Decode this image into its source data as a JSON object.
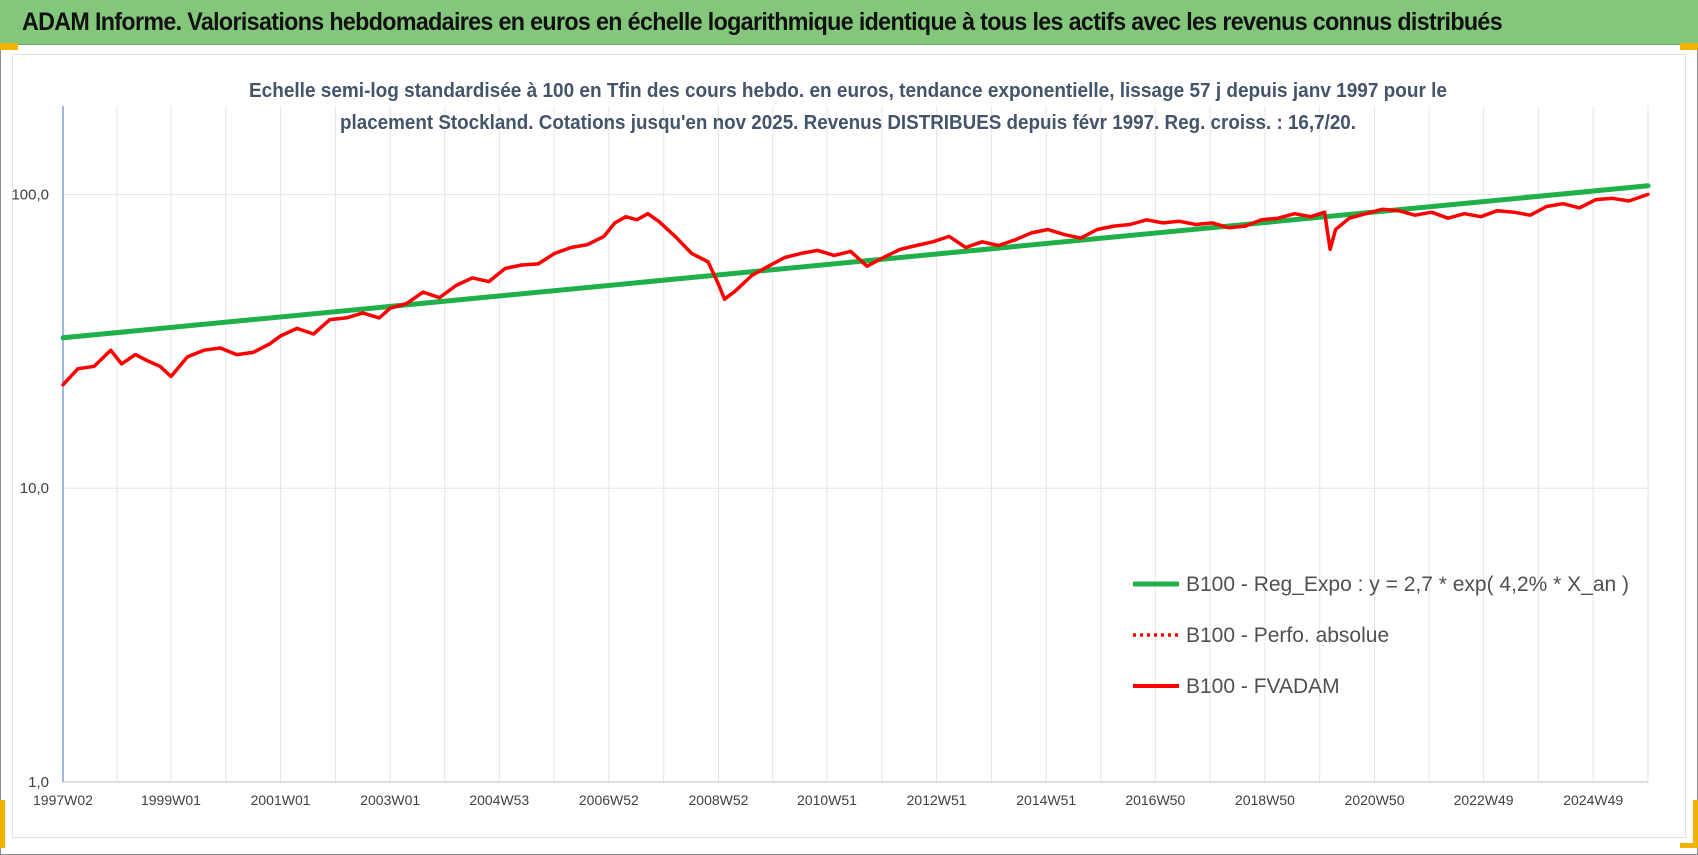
{
  "banner": {
    "title": "ADAM Informe. Valorisations hebdomadaires en euros en échelle logarithmique identique à tous les actifs avec les revenus connus distribués"
  },
  "colors": {
    "banner_bg": "#83c77b",
    "trend": "#1fb04a",
    "fvadam": "#ff0000",
    "perfo": "#ff0000",
    "grid": "#e3e6ea",
    "corner_marks": "#f0b400"
  },
  "chart_data": {
    "type": "line",
    "title_lines": [
      "Echelle semi-log standardisée à 100 en Tfin des cours hebdo. en euros, tendance exponentielle, lissage 57 j depuis janv 1997 pour le",
      "placement Stockland. Cotations jusqu'en nov 2025. Revenus DISTRIBUES depuis févr 1997. Reg. croiss. : 16,7/20."
    ],
    "y_scale": "log",
    "ylim": [
      1,
      200
    ],
    "y_ticks": [
      "1,0",
      "10,0",
      "100,0"
    ],
    "y_tick_values": [
      1,
      10,
      100
    ],
    "xlim": [
      1997.03,
      2025.95
    ],
    "x_tick_labels": [
      "1997W02",
      "1999W01",
      "2001W01",
      "2003W01",
      "2004W53",
      "2006W52",
      "2008W52",
      "2010W51",
      "2012W51",
      "2014W51",
      "2016W50",
      "2018W50",
      "2020W50",
      "2022W49",
      "2024W49"
    ],
    "x_tick_values": [
      1997.03,
      1999.0,
      2001.0,
      2003.0,
      2004.99,
      2006.99,
      2008.99,
      2010.97,
      2012.97,
      2014.97,
      2016.96,
      2018.96,
      2020.96,
      2022.95,
      2024.95
    ],
    "grid": true,
    "legend_position": "right, lower-middle",
    "series": [
      {
        "name": "B100 - Reg_Expo : y = 2,7 * exp( 4,2% *  X_an )",
        "style": "solid-thick",
        "color": "#1fb04a",
        "x": [
          1997.03,
          2025.95
        ],
        "y": [
          32.5,
          107.0
        ]
      },
      {
        "name": "B100 - Perfo. absolue",
        "style": "dotted",
        "color": "#ff0000",
        "x": [],
        "y": []
      },
      {
        "name": "B100 - FVADAM",
        "style": "solid",
        "color": "#ff0000",
        "x": [
          1997.03,
          1997.3,
          1997.6,
          1997.9,
          1998.1,
          1998.35,
          1998.6,
          1998.8,
          1999.0,
          1999.3,
          1999.6,
          1999.9,
          2000.2,
          2000.5,
          2000.8,
          2001.0,
          2001.3,
          2001.6,
          2001.9,
          2002.2,
          2002.5,
          2002.8,
          2003.0,
          2003.3,
          2003.6,
          2003.9,
          2004.2,
          2004.5,
          2004.8,
          2005.1,
          2005.4,
          2005.7,
          2006.0,
          2006.3,
          2006.6,
          2006.9,
          2007.1,
          2007.3,
          2007.5,
          2007.7,
          2007.9,
          2008.2,
          2008.5,
          2008.8,
          2009.0,
          2009.1,
          2009.3,
          2009.6,
          2009.9,
          2010.2,
          2010.5,
          2010.8,
          2011.1,
          2011.4,
          2011.7,
          2012.0,
          2012.3,
          2012.6,
          2012.9,
          2013.2,
          2013.5,
          2013.8,
          2014.1,
          2014.4,
          2014.7,
          2015.0,
          2015.3,
          2015.6,
          2015.9,
          2016.2,
          2016.5,
          2016.8,
          2017.1,
          2017.4,
          2017.7,
          2018.0,
          2018.3,
          2018.6,
          2018.9,
          2019.2,
          2019.5,
          2019.8,
          2020.05,
          2020.15,
          2020.25,
          2020.5,
          2020.8,
          2021.1,
          2021.4,
          2021.7,
          2022.0,
          2022.3,
          2022.6,
          2022.9,
          2023.2,
          2023.5,
          2023.8,
          2024.1,
          2024.4,
          2024.7,
          2025.0,
          2025.3,
          2025.6,
          2025.95
        ],
        "y": [
          22.5,
          25.5,
          26.0,
          29.5,
          26.5,
          28.5,
          27.0,
          26.0,
          24.0,
          28.0,
          29.5,
          30.0,
          28.5,
          29.0,
          31.0,
          33.0,
          35.0,
          33.5,
          37.5,
          38.0,
          39.5,
          38.0,
          41.0,
          42.5,
          46.5,
          44.5,
          49.0,
          52.0,
          50.5,
          56.0,
          57.5,
          58.0,
          63.0,
          66.0,
          67.5,
          72.0,
          80.0,
          84.0,
          82.0,
          86.0,
          81.0,
          72.0,
          63.0,
          59.0,
          49.0,
          44.0,
          47.0,
          53.0,
          57.0,
          61.0,
          63.0,
          64.5,
          62.0,
          64.0,
          57.0,
          61.0,
          65.0,
          67.0,
          69.0,
          72.0,
          66.0,
          69.0,
          67.0,
          70.0,
          74.0,
          76.0,
          73.0,
          71.0,
          76.0,
          78.0,
          79.0,
          82.0,
          80.0,
          81.0,
          79.0,
          80.0,
          77.0,
          78.0,
          82.0,
          83.0,
          86.0,
          84.0,
          87.0,
          65.0,
          76.0,
          83.0,
          86.0,
          89.0,
          88.0,
          85.0,
          87.0,
          83.0,
          86.0,
          84.0,
          88.0,
          87.0,
          85.0,
          91.0,
          93.0,
          90.0,
          96.0,
          97.0,
          95.0,
          100.0
        ]
      }
    ]
  }
}
